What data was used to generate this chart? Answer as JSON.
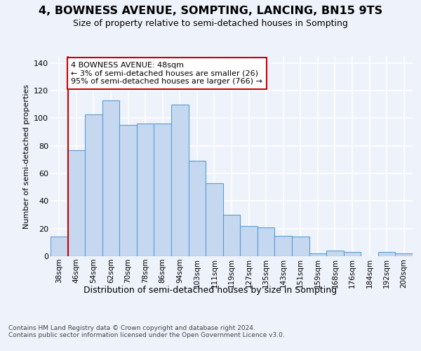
{
  "title": "4, BOWNESS AVENUE, SOMPTING, LANCING, BN15 9TS",
  "subtitle": "Size of property relative to semi-detached houses in Sompting",
  "xlabel": "Distribution of semi-detached houses by size in Sompting",
  "ylabel": "Number of semi-detached properties",
  "categories": [
    "38sqm",
    "46sqm",
    "54sqm",
    "62sqm",
    "70sqm",
    "78sqm",
    "86sqm",
    "94sqm",
    "103sqm",
    "111sqm",
    "119sqm",
    "127sqm",
    "135sqm",
    "143sqm",
    "151sqm",
    "159sqm",
    "168sqm",
    "176sqm",
    "184sqm",
    "192sqm",
    "200sqm"
  ],
  "values": [
    14,
    77,
    103,
    113,
    95,
    96,
    96,
    110,
    69,
    53,
    30,
    22,
    21,
    15,
    14,
    2,
    4,
    3,
    0,
    3,
    2
  ],
  "bar_color": "#c5d8f0",
  "bar_edge_color": "#5b9bd5",
  "vline_x_index": 1,
  "vline_color": "#cc0000",
  "annotation_text": "4 BOWNESS AVENUE: 48sqm\n← 3% of semi-detached houses are smaller (26)\n95% of semi-detached houses are larger (766) →",
  "annotation_box_color": "white",
  "annotation_box_edge": "#cc0000",
  "ylim": [
    0,
    145
  ],
  "yticks": [
    0,
    20,
    40,
    60,
    80,
    100,
    120,
    140
  ],
  "footer": "Contains HM Land Registry data © Crown copyright and database right 2024.\nContains public sector information licensed under the Open Government Licence v3.0.",
  "bg_color": "#eef2fa",
  "grid_color": "#ffffff",
  "title_fontsize": 11.5,
  "subtitle_fontsize": 9,
  "ylabel_fontsize": 8,
  "xlabel_fontsize": 9,
  "tick_fontsize": 7.5,
  "footer_fontsize": 6.5,
  "ann_fontsize": 8
}
